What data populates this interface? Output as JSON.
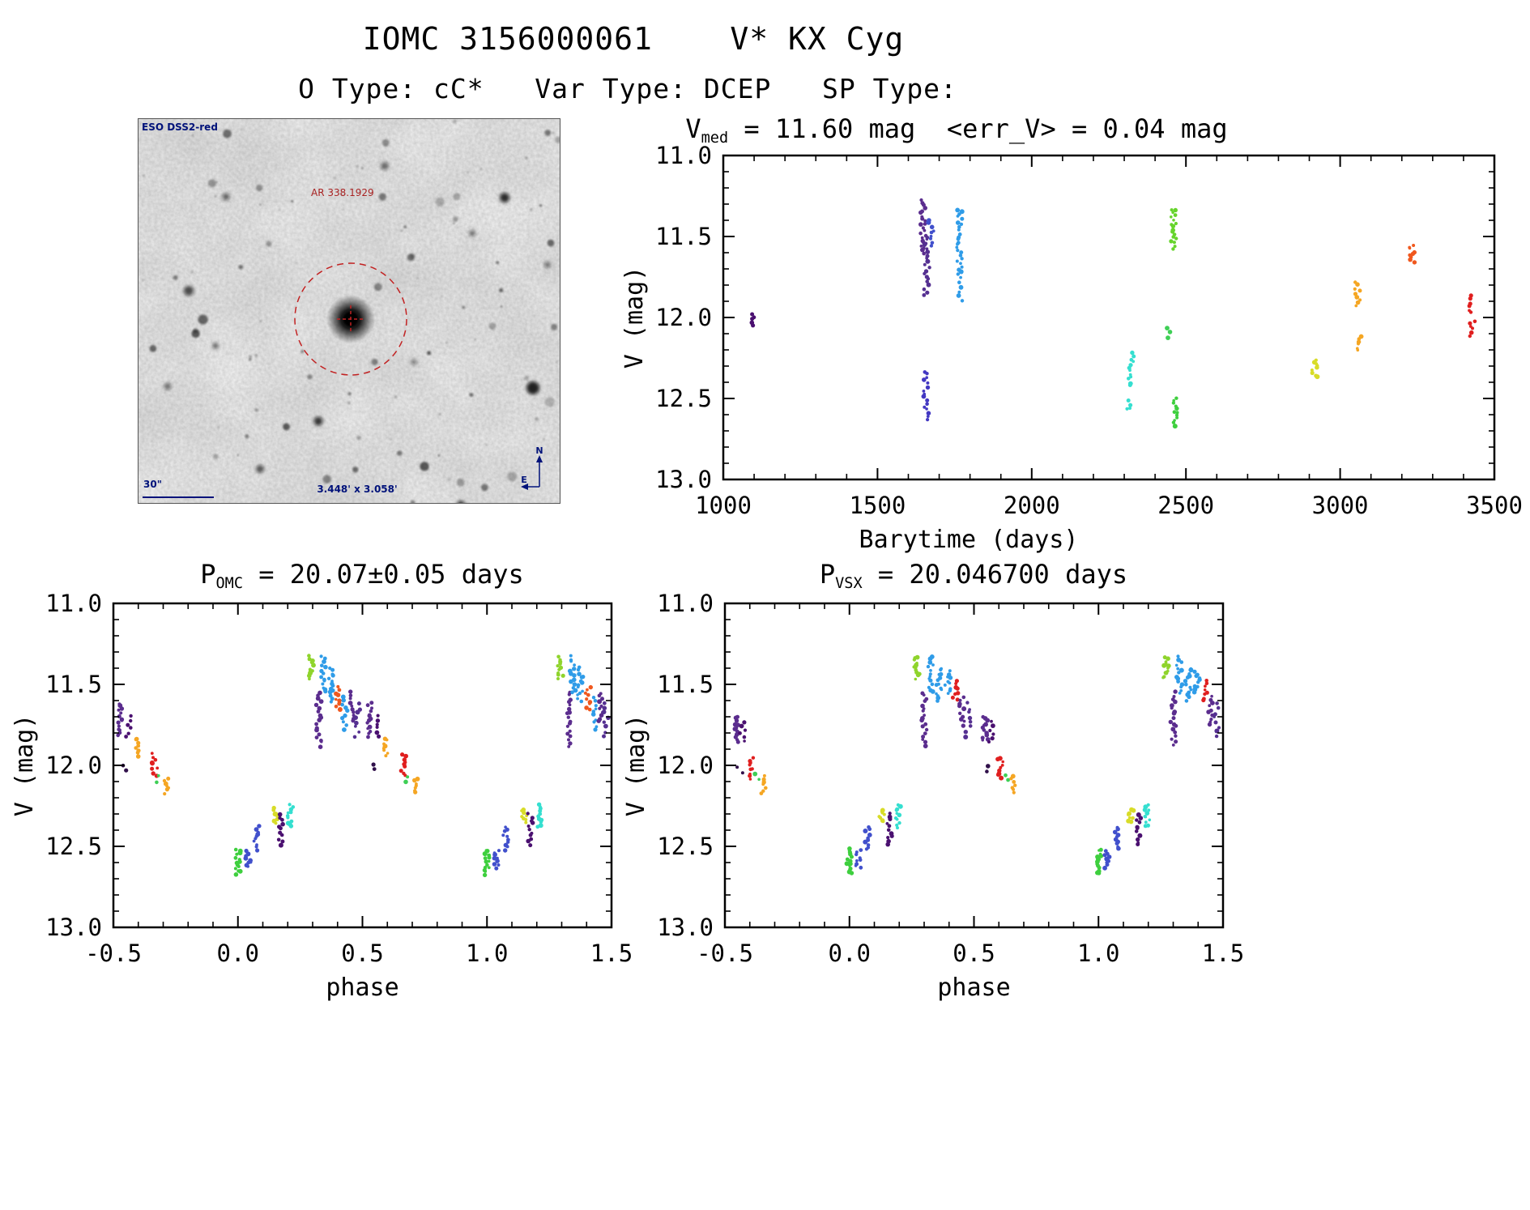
{
  "page": {
    "title": "IOMC 3156000061    V* KX Cyg",
    "subtitle": "O Type: cC*   Var Type: DCEP   SP Type:"
  },
  "finding_chart": {
    "survey_label": "ESO DSS2-red",
    "coord_label": "AR 338.1929",
    "scale_label": "30\"",
    "fov_label": "3.448' x 3.058'",
    "compass_north": "N",
    "compass_east": "E"
  },
  "chart_data": [
    {
      "id": "lightcurve",
      "type": "scatter",
      "title": {
        "prefix": "V",
        "sub": "med",
        "rest": " = 11.60 mag  <err_V> = 0.04 mag"
      },
      "xlabel": "Barytime (days)",
      "ylabel": "V (mag)",
      "xlim": [
        1000,
        3500
      ],
      "ylim": [
        11.0,
        13.0
      ],
      "y_inverted": true,
      "xticks": [
        1000,
        1500,
        2000,
        2500,
        3000,
        3500
      ],
      "xtick_labels": [
        "1000",
        "1500",
        "2000",
        "2500",
        "3000",
        "3500"
      ],
      "yticks": [
        11.0,
        11.5,
        12.0,
        12.5,
        13.0
      ],
      "ytick_labels": [
        "11.0",
        "11.5",
        "12.0",
        "12.5",
        "13.0"
      ],
      "x_minor": 100,
      "y_minor": 0.1,
      "wrap": false,
      "clusters": [
        {
          "x": 1093,
          "y1": 11.98,
          "y2": 12.05,
          "c": "#4a1070",
          "n": 5
        },
        {
          "x": 1648,
          "y1": 11.28,
          "y2": 11.6,
          "c": "#5b2d8e",
          "n": 22
        },
        {
          "x": 1660,
          "y1": 11.5,
          "y2": 11.86,
          "c": "#553091",
          "n": 20
        },
        {
          "x": 1673,
          "y1": 11.4,
          "y2": 11.56,
          "c": "#4150cc",
          "n": 9
        },
        {
          "x": 1657,
          "y1": 12.33,
          "y2": 12.63,
          "c": "#4338c2",
          "n": 16
        },
        {
          "x": 1766,
          "y1": 11.33,
          "y2": 11.75,
          "c": "#2f9ce8",
          "n": 26
        },
        {
          "x": 1772,
          "y1": 11.78,
          "y2": 11.9,
          "c": "#2f9ce8",
          "n": 5
        },
        {
          "x": 2322,
          "y1": 12.22,
          "y2": 12.42,
          "c": "#35dfd0",
          "n": 12
        },
        {
          "x": 2316,
          "y1": 12.52,
          "y2": 12.57,
          "c": "#35dfd0",
          "n": 4
        },
        {
          "x": 2460,
          "y1": 11.33,
          "y2": 11.57,
          "c": "#66d42c",
          "n": 18
        },
        {
          "x": 2448,
          "y1": 12.07,
          "y2": 12.12,
          "c": "#3ecf55",
          "n": 3
        },
        {
          "x": 2468,
          "y1": 12.5,
          "y2": 12.67,
          "c": "#3ecf3e",
          "n": 12
        },
        {
          "x": 2918,
          "y1": 12.26,
          "y2": 12.37,
          "c": "#d8dc28",
          "n": 9
        },
        {
          "x": 3056,
          "y1": 11.78,
          "y2": 11.93,
          "c": "#f5a623",
          "n": 9
        },
        {
          "x": 3062,
          "y1": 12.12,
          "y2": 12.2,
          "c": "#f5a623",
          "n": 6
        },
        {
          "x": 3234,
          "y1": 11.55,
          "y2": 11.66,
          "c": "#f0581e",
          "n": 9
        },
        {
          "x": 3424,
          "y1": 11.87,
          "y2": 11.97,
          "c": "#e01f1f",
          "n": 6
        },
        {
          "x": 3428,
          "y1": 12.02,
          "y2": 12.11,
          "c": "#e01f1f",
          "n": 6
        }
      ]
    },
    {
      "id": "phase_omc",
      "type": "scatter",
      "title": {
        "prefix": "P",
        "sub": "OMC",
        "rest": " = 20.07±0.05 days"
      },
      "xlabel": "phase",
      "ylabel": "V (mag)",
      "xlim": [
        -0.5,
        1.5
      ],
      "ylim": [
        11.0,
        13.0
      ],
      "y_inverted": true,
      "xticks": [
        -0.5,
        0.0,
        0.5,
        1.0,
        1.5
      ],
      "xtick_labels": [
        "-0.5",
        "0.0",
        "0.5",
        "1.0",
        "1.5"
      ],
      "yticks": [
        11.0,
        11.5,
        12.0,
        12.5,
        13.0
      ],
      "ytick_labels": [
        "11.0",
        "11.5",
        "12.0",
        "12.5",
        "13.0"
      ],
      "x_minor": 0.1,
      "y_minor": 0.1,
      "wrap": true,
      "clusters": [
        {
          "x": -0.47,
          "y1": 11.62,
          "y2": 11.82,
          "c": "#5b2d8e",
          "n": 14
        },
        {
          "x": -0.44,
          "y1": 11.7,
          "y2": 11.82,
          "c": "#4a1070",
          "n": 6
        },
        {
          "x": -0.405,
          "y1": 11.83,
          "y2": 11.94,
          "c": "#f5a623",
          "n": 8
        },
        {
          "x": -0.45,
          "y1": 12.0,
          "y2": 12.03,
          "c": "#30104a",
          "n": 2
        },
        {
          "x": -0.335,
          "y1": 11.93,
          "y2": 12.06,
          "c": "#e01f1f",
          "n": 9
        },
        {
          "x": -0.315,
          "y1": 12.07,
          "y2": 12.1,
          "c": "#3ecf55",
          "n": 2
        },
        {
          "x": -0.285,
          "y1": 12.08,
          "y2": 12.17,
          "c": "#f5a623",
          "n": 7
        },
        {
          "x": 0.0,
          "y1": 12.52,
          "y2": 12.67,
          "c": "#3ecf3e",
          "n": 14
        },
        {
          "x": 0.04,
          "y1": 12.53,
          "y2": 12.63,
          "c": "#4150cc",
          "n": 9
        },
        {
          "x": 0.075,
          "y1": 12.38,
          "y2": 12.52,
          "c": "#4150cc",
          "n": 10
        },
        {
          "x": 0.15,
          "y1": 12.27,
          "y2": 12.35,
          "c": "#d8dc28",
          "n": 8
        },
        {
          "x": 0.175,
          "y1": 12.3,
          "y2": 12.49,
          "c": "#4a1070",
          "n": 11
        },
        {
          "x": 0.21,
          "y1": 12.24,
          "y2": 12.38,
          "c": "#35dfd0",
          "n": 11
        },
        {
          "x": 0.295,
          "y1": 11.33,
          "y2": 11.46,
          "c": "#8fd42c",
          "n": 12
        },
        {
          "x": 0.325,
          "y1": 11.55,
          "y2": 11.88,
          "c": "#5b2d8e",
          "n": 18
        },
        {
          "x": 0.345,
          "y1": 11.33,
          "y2": 11.55,
          "c": "#2f9ce8",
          "n": 14
        },
        {
          "x": 0.375,
          "y1": 11.4,
          "y2": 11.6,
          "c": "#2f9ce8",
          "n": 14
        },
        {
          "x": 0.405,
          "y1": 11.52,
          "y2": 11.66,
          "c": "#f0581e",
          "n": 9
        },
        {
          "x": 0.43,
          "y1": 11.58,
          "y2": 11.78,
          "c": "#2f9ce8",
          "n": 10
        },
        {
          "x": 0.455,
          "y1": 11.55,
          "y2": 11.73,
          "c": "#5b2d8e",
          "n": 10
        },
        {
          "x": 0.48,
          "y1": 11.62,
          "y2": 11.82,
          "c": "#553091",
          "n": 8
        }
      ]
    },
    {
      "id": "phase_vsx",
      "type": "scatter",
      "title": {
        "prefix": "P",
        "sub": "VSX",
        "rest": " = 20.046700 days"
      },
      "xlabel": "phase",
      "ylabel": "V (mag)",
      "xlim": [
        -0.5,
        1.5
      ],
      "ylim": [
        11.0,
        13.0
      ],
      "y_inverted": true,
      "xticks": [
        -0.5,
        0.0,
        0.5,
        1.0,
        1.5
      ],
      "xtick_labels": [
        "-0.5",
        "0.0",
        "0.5",
        "1.0",
        "1.5"
      ],
      "yticks": [
        11.0,
        11.5,
        12.0,
        12.5,
        13.0
      ],
      "ytick_labels": [
        "11.0",
        "11.5",
        "12.0",
        "12.5",
        "13.0"
      ],
      "x_minor": 0.1,
      "y_minor": 0.1,
      "wrap": true,
      "clusters": [
        {
          "x": -0.455,
          "y1": 11.7,
          "y2": 11.85,
          "c": "#5b2d8e",
          "n": 12
        },
        {
          "x": -0.43,
          "y1": 11.73,
          "y2": 11.85,
          "c": "#4a1070",
          "n": 6
        },
        {
          "x": -0.44,
          "y1": 12.01,
          "y2": 12.04,
          "c": "#30104a",
          "n": 2
        },
        {
          "x": -0.395,
          "y1": 11.95,
          "y2": 12.08,
          "c": "#e01f1f",
          "n": 9
        },
        {
          "x": -0.37,
          "y1": 12.06,
          "y2": 12.09,
          "c": "#3ecf55",
          "n": 2
        },
        {
          "x": -0.345,
          "y1": 12.07,
          "y2": 12.17,
          "c": "#f5a623",
          "n": 7
        },
        {
          "x": 0.0,
          "y1": 12.52,
          "y2": 12.67,
          "c": "#3ecf3e",
          "n": 14
        },
        {
          "x": 0.035,
          "y1": 12.53,
          "y2": 12.63,
          "c": "#4150cc",
          "n": 9
        },
        {
          "x": 0.07,
          "y1": 12.38,
          "y2": 12.52,
          "c": "#4150cc",
          "n": 10
        },
        {
          "x": 0.13,
          "y1": 12.27,
          "y2": 12.35,
          "c": "#d8dc28",
          "n": 8
        },
        {
          "x": 0.16,
          "y1": 12.3,
          "y2": 12.49,
          "c": "#4a1070",
          "n": 11
        },
        {
          "x": 0.195,
          "y1": 12.24,
          "y2": 12.38,
          "c": "#35dfd0",
          "n": 11
        },
        {
          "x": 0.27,
          "y1": 11.33,
          "y2": 11.46,
          "c": "#8fd42c",
          "n": 12
        },
        {
          "x": 0.3,
          "y1": 11.55,
          "y2": 11.88,
          "c": "#5b2d8e",
          "n": 18
        },
        {
          "x": 0.325,
          "y1": 11.33,
          "y2": 11.55,
          "c": "#2f9ce8",
          "n": 14
        },
        {
          "x": 0.36,
          "y1": 11.4,
          "y2": 11.6,
          "c": "#2f9ce8",
          "n": 14
        },
        {
          "x": 0.395,
          "y1": 11.42,
          "y2": 11.55,
          "c": "#2f9ce8",
          "n": 10
        },
        {
          "x": 0.425,
          "y1": 11.48,
          "y2": 11.6,
          "c": "#e01f1f",
          "n": 8
        },
        {
          "x": 0.45,
          "y1": 11.58,
          "y2": 11.75,
          "c": "#5b2d8e",
          "n": 10
        },
        {
          "x": 0.475,
          "y1": 11.62,
          "y2": 11.82,
          "c": "#553091",
          "n": 8
        }
      ]
    }
  ]
}
